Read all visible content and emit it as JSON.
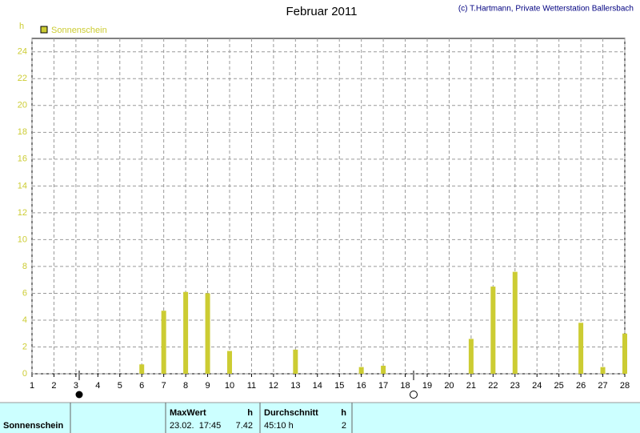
{
  "chart_data": {
    "type": "bar",
    "title": "Februar 2011",
    "credit": "(c) T.Hartmann, Private Wetterstation Ballersbach",
    "y_label": "h",
    "x": [
      1,
      2,
      3,
      4,
      5,
      6,
      7,
      8,
      9,
      10,
      11,
      12,
      13,
      14,
      15,
      16,
      17,
      18,
      19,
      20,
      21,
      22,
      23,
      24,
      25,
      26,
      27,
      28
    ],
    "series": [
      {
        "name": "Sonnenschein",
        "color": "#cccc33",
        "values": [
          0,
          0,
          0,
          0,
          0,
          0.7,
          4.7,
          6.1,
          6.0,
          1.7,
          0,
          0,
          1.8,
          0,
          0,
          0.5,
          0.6,
          0,
          0,
          0,
          2.6,
          6.5,
          7.6,
          0,
          0,
          3.8,
          0.5,
          3.0
        ]
      }
    ],
    "xlim": [
      1,
      28
    ],
    "xticks": [
      1,
      2,
      3,
      4,
      5,
      6,
      7,
      8,
      9,
      10,
      11,
      12,
      13,
      14,
      15,
      16,
      17,
      18,
      19,
      20,
      21,
      22,
      23,
      24,
      25,
      26,
      27,
      28
    ],
    "ylim": [
      0,
      25
    ],
    "yticks": [
      0,
      2,
      4,
      6,
      8,
      10,
      12,
      14,
      16,
      18,
      20,
      22,
      24
    ],
    "grid": true
  },
  "table": {
    "header": [
      "MaxWert",
      "h",
      "Durchschnitt",
      "h"
    ],
    "row": [
      "Sonnenschein",
      "23.02.  17:45",
      "7.42",
      "45:10 h",
      "2"
    ]
  }
}
